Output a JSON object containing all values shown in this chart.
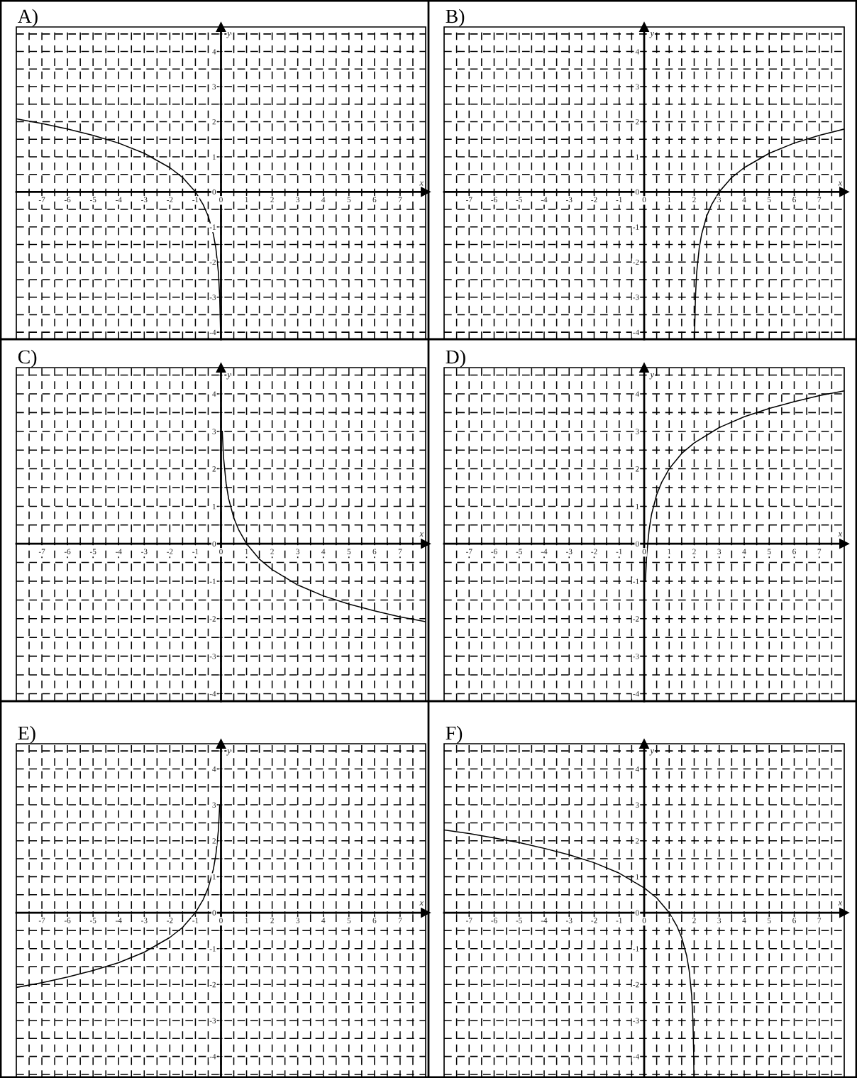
{
  "chart_data": [
    {
      "type": "line",
      "title": "A)",
      "xlabel": "x",
      "ylabel": "y",
      "xlim": [
        -8,
        8
      ],
      "ylim": [
        -4.2,
        4.7
      ],
      "grid": true,
      "marker": "none",
      "line_style": "solid",
      "xticks": [
        {
          "value": -7.5,
          "label": null
        },
        -7,
        {
          "value": -6.5,
          "label": null
        },
        -6,
        {
          "value": -5.5,
          "label": null
        },
        -5,
        {
          "value": -4.5,
          "label": null
        },
        -4,
        {
          "value": -3.5,
          "label": null
        },
        -3,
        {
          "value": -2.5,
          "label": null
        },
        -2,
        {
          "value": -1.5,
          "label": null
        },
        -1,
        {
          "value": -0.5,
          "label": null
        },
        0,
        {
          "value": 0.5,
          "label": null
        },
        1,
        {
          "value": 1.5,
          "label": null
        },
        2,
        {
          "value": 2.5,
          "label": null
        },
        3,
        {
          "value": 3.5,
          "label": null
        },
        4,
        {
          "value": 4.5,
          "label": null
        },
        5,
        {
          "value": 5.5,
          "label": null
        },
        6,
        {
          "value": 6.5,
          "label": null
        },
        7,
        {
          "value": 7.5,
          "label": null
        }
      ],
      "yticks": [
        {
          "value": -4,
          "label": "-4"
        },
        {
          "value": -3.5,
          "label": null
        },
        {
          "value": -3,
          "label": "-3"
        },
        {
          "value": -2.5,
          "label": null
        },
        {
          "value": -2,
          "label": "-2"
        },
        {
          "value": -1.5,
          "label": null
        },
        {
          "value": -1,
          "label": "-1"
        },
        {
          "value": -0.5,
          "label": null
        },
        0,
        {
          "value": 0.5,
          "label": null
        },
        1,
        {
          "value": 1.5,
          "label": null
        },
        2,
        {
          "value": 2.5,
          "label": null
        },
        3,
        {
          "value": 3.5,
          "label": null
        },
        4,
        {
          "value": 4.5,
          "label": null
        }
      ],
      "series": [
        {
          "color": "#000000",
          "x": [
            -8,
            -7,
            -6,
            -5,
            -4,
            -3,
            -2,
            -1.5,
            -1,
            -0.7,
            -0.5,
            -0.3,
            -0.2,
            -0.1,
            -0.05,
            -0.02,
            -0.009
          ],
          "values": [
            2.08,
            1.95,
            1.79,
            1.61,
            1.39,
            1.1,
            0.69,
            0.41,
            0,
            -0.36,
            -0.69,
            -1.2,
            -1.61,
            -2.3,
            -3.0,
            -3.91,
            -4.2
          ]
        }
      ]
    },
    {
      "type": "line",
      "title": "B)",
      "xlabel": "x",
      "ylabel": "y",
      "xlim": [
        -8,
        8
      ],
      "ylim": [
        -4.2,
        4.7
      ],
      "grid": true,
      "marker": "none",
      "line_style": "solid",
      "xticks": [
        {
          "value": -7.5,
          "label": null
        },
        -7,
        {
          "value": -6.5,
          "label": null
        },
        -6,
        {
          "value": -5.5,
          "label": null
        },
        -5,
        {
          "value": -4.5,
          "label": null
        },
        -4,
        {
          "value": -3.5,
          "label": null
        },
        -3,
        {
          "value": -2.5,
          "label": null
        },
        -2,
        {
          "value": -1.5,
          "label": null
        },
        -1,
        {
          "value": -0.5,
          "label": null
        },
        0,
        {
          "value": 0.5,
          "label": null
        },
        1,
        {
          "value": 1.5,
          "label": null
        },
        2,
        {
          "value": 2.5,
          "label": null
        },
        3,
        {
          "value": 3.5,
          "label": null
        },
        4,
        {
          "value": 4.5,
          "label": null
        },
        5,
        {
          "value": 5.5,
          "label": null
        },
        6,
        {
          "value": 6.5,
          "label": null
        },
        7,
        {
          "value": 7.5,
          "label": null
        }
      ],
      "yticks": [
        {
          "value": -4,
          "label": "-4"
        },
        {
          "value": -3.5,
          "label": null
        },
        {
          "value": -3,
          "label": "-3"
        },
        {
          "value": -2.5,
          "label": null
        },
        {
          "value": -2,
          "label": "-2"
        },
        {
          "value": -1.5,
          "label": null
        },
        {
          "value": -1,
          "label": "-1"
        },
        {
          "value": -0.5,
          "label": null
        },
        0,
        {
          "value": 0.5,
          "label": null
        },
        1,
        {
          "value": 1.5,
          "label": null
        },
        2,
        {
          "value": 2.5,
          "label": null
        },
        3,
        {
          "value": 3.5,
          "label": null
        },
        4,
        {
          "value": 4.5,
          "label": null
        }
      ],
      "series": [
        {
          "color": "#000000",
          "x": [
            2.015,
            2.02,
            2.05,
            2.1,
            2.2,
            2.3,
            2.5,
            2.7,
            3,
            3.5,
            4,
            5,
            6,
            7,
            8
          ],
          "values": [
            -4.2,
            -3.91,
            -3.0,
            -2.3,
            -1.61,
            -1.2,
            -0.69,
            -0.36,
            0,
            0.41,
            0.69,
            1.1,
            1.39,
            1.61,
            1.79
          ]
        }
      ]
    },
    {
      "type": "line",
      "title": "C)",
      "xlabel": "x",
      "ylabel": "y",
      "xlim": [
        -8,
        8
      ],
      "ylim": [
        -4.2,
        4.7
      ],
      "grid": true,
      "marker": "none",
      "line_style": "solid",
      "xticks": [
        {
          "value": -7.5,
          "label": null
        },
        -7,
        {
          "value": -6.5,
          "label": null
        },
        -6,
        {
          "value": -5.5,
          "label": null
        },
        -5,
        {
          "value": -4.5,
          "label": null
        },
        -4,
        {
          "value": -3.5,
          "label": null
        },
        -3,
        {
          "value": -2.5,
          "label": null
        },
        -2,
        {
          "value": -1.5,
          "label": null
        },
        -1,
        {
          "value": -0.5,
          "label": null
        },
        0,
        {
          "value": 0.5,
          "label": null
        },
        1,
        {
          "value": 1.5,
          "label": null
        },
        2,
        {
          "value": 2.5,
          "label": null
        },
        3,
        {
          "value": 3.5,
          "label": null
        },
        4,
        {
          "value": 4.5,
          "label": null
        },
        5,
        {
          "value": 5.5,
          "label": null
        },
        6,
        {
          "value": 6.5,
          "label": null
        },
        7,
        {
          "value": 7.5,
          "label": null
        }
      ],
      "yticks": [
        {
          "value": -4,
          "label": "-4"
        },
        {
          "value": -3.5,
          "label": null
        },
        {
          "value": -3,
          "label": "-3"
        },
        {
          "value": -2.5,
          "label": null
        },
        {
          "value": -2,
          "label": "-2"
        },
        {
          "value": -1.5,
          "label": null
        },
        {
          "value": -1,
          "label": "-1"
        },
        {
          "value": -0.5,
          "label": null
        },
        0,
        {
          "value": 0.5,
          "label": null
        },
        1,
        {
          "value": 1.5,
          "label": null
        },
        2,
        {
          "value": 2.5,
          "label": null
        },
        3,
        {
          "value": 3.5,
          "label": null
        },
        4,
        {
          "value": 4.5,
          "label": null
        }
      ],
      "series": [
        {
          "color": "#000000",
          "x": [
            0.05,
            0.1,
            0.2,
            0.3,
            0.5,
            0.7,
            1,
            1.5,
            2,
            3,
            4,
            5,
            6,
            7,
            8
          ],
          "values": [
            3.0,
            2.3,
            1.61,
            1.2,
            0.69,
            0.36,
            0,
            -0.41,
            -0.69,
            -1.1,
            -1.39,
            -1.61,
            -1.79,
            -1.95,
            -2.08
          ]
        }
      ]
    },
    {
      "type": "line",
      "title": "D)",
      "xlabel": "x",
      "ylabel": "y",
      "xlim": [
        -8,
        8
      ],
      "ylim": [
        -4.2,
        4.7
      ],
      "grid": true,
      "marker": "none",
      "line_style": "solid",
      "xticks": [
        {
          "value": -7.5,
          "label": null
        },
        -7,
        {
          "value": -6.5,
          "label": null
        },
        -6,
        {
          "value": -5.5,
          "label": null
        },
        -5,
        {
          "value": -4.5,
          "label": null
        },
        -4,
        {
          "value": -3.5,
          "label": null
        },
        -3,
        {
          "value": -2.5,
          "label": null
        },
        -2,
        {
          "value": -1.5,
          "label": null
        },
        -1,
        {
          "value": -0.5,
          "label": null
        },
        0,
        {
          "value": 0.5,
          "label": null
        },
        1,
        {
          "value": 1.5,
          "label": null
        },
        2,
        {
          "value": 2.5,
          "label": null
        },
        3,
        {
          "value": 3.5,
          "label": null
        },
        4,
        {
          "value": 4.5,
          "label": null
        },
        5,
        {
          "value": 5.5,
          "label": null
        },
        6,
        {
          "value": 6.5,
          "label": null
        },
        7,
        {
          "value": 7.5,
          "label": null
        }
      ],
      "yticks": [
        {
          "value": -4,
          "label": "-4"
        },
        {
          "value": -3.5,
          "label": null
        },
        {
          "value": -3,
          "label": "-3"
        },
        {
          "value": -2.5,
          "label": null
        },
        {
          "value": -2,
          "label": "-2"
        },
        {
          "value": -1.5,
          "label": null
        },
        {
          "value": -1,
          "label": "-1"
        },
        {
          "value": -0.5,
          "label": null
        },
        0,
        {
          "value": 0.5,
          "label": null
        },
        1,
        {
          "value": 1.5,
          "label": null
        },
        2,
        {
          "value": 2.5,
          "label": null
        },
        3,
        {
          "value": 3.5,
          "label": null
        },
        4,
        {
          "value": 4.5,
          "label": null
        }
      ],
      "series": [
        {
          "color": "#000000",
          "x": [
            0.05,
            0.1,
            0.2,
            0.3,
            0.5,
            0.7,
            1,
            1.5,
            2,
            3,
            4,
            5,
            6,
            7,
            8
          ],
          "values": [
            -1.0,
            -0.3,
            0.39,
            0.8,
            1.31,
            1.64,
            2.0,
            2.41,
            2.69,
            3.1,
            3.39,
            3.61,
            3.79,
            3.95,
            4.08
          ]
        }
      ]
    },
    {
      "type": "line",
      "title": "E)",
      "xlabel": "x",
      "ylabel": "y",
      "xlim": [
        -8,
        8
      ],
      "ylim": [
        -4.6,
        4.7
      ],
      "grid": true,
      "marker": "none",
      "line_style": "solid",
      "xticks": [
        {
          "value": -7.5,
          "label": null
        },
        -7,
        {
          "value": -6.5,
          "label": null
        },
        -6,
        {
          "value": -5.5,
          "label": null
        },
        -5,
        {
          "value": -4.5,
          "label": null
        },
        -4,
        {
          "value": -3.5,
          "label": null
        },
        -3,
        {
          "value": -2.5,
          "label": null
        },
        -2,
        {
          "value": -1.5,
          "label": null
        },
        -1,
        {
          "value": -0.5,
          "label": null
        },
        0,
        {
          "value": 0.5,
          "label": null
        },
        1,
        {
          "value": 1.5,
          "label": null
        },
        2,
        {
          "value": 2.5,
          "label": null
        },
        3,
        {
          "value": 3.5,
          "label": null
        },
        4,
        {
          "value": 4.5,
          "label": null
        },
        5,
        {
          "value": 5.5,
          "label": null
        },
        6,
        {
          "value": 6.5,
          "label": null
        },
        7,
        {
          "value": 7.5,
          "label": null
        }
      ],
      "yticks": [
        {
          "value": -4.5,
          "label": null
        },
        {
          "value": -4,
          "label": "-4"
        },
        {
          "value": -3.5,
          "label": null
        },
        {
          "value": -3,
          "label": "-3"
        },
        {
          "value": -2.5,
          "label": null
        },
        {
          "value": -2,
          "label": "-2"
        },
        {
          "value": -1.5,
          "label": null
        },
        {
          "value": -1,
          "label": "-1"
        },
        {
          "value": -0.5,
          "label": null
        },
        0,
        {
          "value": 0.5,
          "label": null
        },
        1,
        {
          "value": 1.5,
          "label": null
        },
        2,
        {
          "value": 2.5,
          "label": null
        },
        3,
        {
          "value": 3.5,
          "label": null
        },
        4,
        {
          "value": 4.5,
          "label": null
        }
      ],
      "series": [
        {
          "color": "#000000",
          "x": [
            -8,
            -7,
            -6,
            -5,
            -4,
            -3,
            -2,
            -1.5,
            -1,
            -0.7,
            -0.5,
            -0.3,
            -0.2,
            -0.1,
            -0.05
          ],
          "values": [
            -2.08,
            -1.95,
            -1.79,
            -1.61,
            -1.39,
            -1.1,
            -0.69,
            -0.41,
            0,
            0.36,
            0.69,
            1.2,
            1.61,
            2.3,
            3.0
          ]
        }
      ]
    },
    {
      "type": "line",
      "title": "F)",
      "xlabel": "x",
      "ylabel": "y",
      "xlim": [
        -8,
        8
      ],
      "ylim": [
        -4.6,
        4.7
      ],
      "grid": true,
      "marker": "none",
      "line_style": "solid",
      "xticks": [
        {
          "value": -7.5,
          "label": null
        },
        -7,
        {
          "value": -6.5,
          "label": null
        },
        -6,
        {
          "value": -5.5,
          "label": null
        },
        -5,
        {
          "value": -4.5,
          "label": null
        },
        -4,
        {
          "value": -3.5,
          "label": null
        },
        -3,
        {
          "value": -2.5,
          "label": null
        },
        -2,
        {
          "value": -1.5,
          "label": null
        },
        -1,
        {
          "value": -0.5,
          "label": null
        },
        0,
        {
          "value": 0.5,
          "label": null
        },
        1,
        {
          "value": 1.5,
          "label": null
        },
        2,
        {
          "value": 2.5,
          "label": null
        },
        3,
        {
          "value": 3.5,
          "label": null
        },
        4,
        {
          "value": 4.5,
          "label": null
        },
        5,
        {
          "value": 5.5,
          "label": null
        },
        6,
        {
          "value": 6.5,
          "label": null
        },
        7,
        {
          "value": 7.5,
          "label": null
        }
      ],
      "yticks": [
        {
          "value": -4.5,
          "label": null
        },
        {
          "value": -4,
          "label": "-4"
        },
        {
          "value": -3.5,
          "label": null
        },
        {
          "value": -3,
          "label": "-3"
        },
        {
          "value": -2.5,
          "label": null
        },
        {
          "value": -2,
          "label": "-2"
        },
        {
          "value": -1.5,
          "label": null
        },
        {
          "value": -1,
          "label": "-1"
        },
        {
          "value": -0.5,
          "label": null
        },
        0,
        {
          "value": 0.5,
          "label": null
        },
        1,
        {
          "value": 1.5,
          "label": null
        },
        2,
        {
          "value": 2.5,
          "label": null
        },
        3,
        {
          "value": 3.5,
          "label": null
        },
        4,
        {
          "value": 4.5,
          "label": null
        }
      ],
      "series": [
        {
          "color": "#000000",
          "x": [
            -8,
            -7,
            -6,
            -5,
            -4,
            -3,
            -2,
            -1,
            0,
            0.5,
            1,
            1.3,
            1.5,
            1.7,
            1.8,
            1.9,
            1.95,
            1.98,
            1.99
          ],
          "values": [
            2.3,
            2.2,
            2.08,
            1.95,
            1.79,
            1.61,
            1.39,
            1.1,
            0.69,
            0.41,
            0,
            -0.36,
            -0.69,
            -1.2,
            -1.61,
            -2.3,
            -3.0,
            -3.91,
            -4.6
          ]
        }
      ]
    }
  ]
}
